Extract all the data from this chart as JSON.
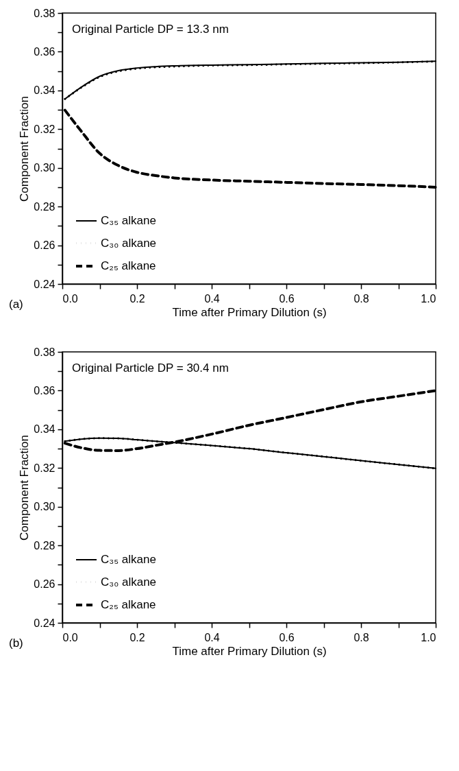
{
  "chart_data": [
    {
      "type": "line",
      "xlabel": "Time after Primary Dilution (s)",
      "ylabel": "Component Fraction",
      "annotations": [
        "Original Particle DP = 13.3 nm",
        "(a)"
      ],
      "x": [
        0.007,
        0.05,
        0.1,
        0.15,
        0.2,
        0.25,
        0.3,
        0.4,
        0.5,
        0.6,
        0.7,
        0.8,
        0.9,
        1.0
      ],
      "series": [
        {
          "name": "C₃₅ alkane",
          "color": "#000000",
          "line_style": "solid",
          "values": [
            0.3356,
            0.3416,
            0.3473,
            0.3502,
            0.3516,
            0.3523,
            0.3527,
            0.3531,
            0.3533,
            0.3537,
            0.354,
            0.3543,
            0.3546,
            0.3551
          ]
        },
        {
          "name": "C₃₀ alkane",
          "color": "#000000",
          "line_style": "dotted",
          "values": [
            0.3356,
            0.3414,
            0.347,
            0.3499,
            0.3513,
            0.352,
            0.3524,
            0.3529,
            0.3531,
            0.3535,
            0.3538,
            0.3541,
            0.3545,
            0.355
          ]
        },
        {
          "name": "C₂₅ alkane",
          "color": "#000000",
          "line_style": "dashed",
          "values": [
            0.3298,
            0.3191,
            0.3075,
            0.3012,
            0.2977,
            0.296,
            0.2948,
            0.2937,
            0.2931,
            0.2925,
            0.2919,
            0.2914,
            0.2908,
            0.29
          ]
        }
      ],
      "xlim": [
        0,
        1
      ],
      "ylim": [
        0.24,
        0.38
      ],
      "xticks": [
        {
          "value": 0,
          "label": "0.0"
        },
        {
          "value": 0.1,
          "label": null
        },
        0.2,
        {
          "value": 0.3,
          "label": null
        },
        0.4,
        {
          "value": 0.5,
          "label": null
        },
        0.6,
        {
          "value": 0.7,
          "label": null
        },
        0.8,
        {
          "value": 0.9,
          "label": null
        },
        {
          "value": 1,
          "label": "1.0"
        }
      ],
      "yticks": [
        0.24,
        {
          "value": 0.25,
          "label": null
        },
        0.26,
        {
          "value": 0.27,
          "label": null
        },
        0.28,
        {
          "value": 0.29,
          "label": null
        },
        {
          "value": 0.3,
          "label": "0.30"
        },
        {
          "value": 0.31,
          "label": null
        },
        0.32,
        {
          "value": 0.33,
          "label": null
        },
        0.34,
        {
          "value": 0.35,
          "label": null
        },
        0.36,
        {
          "value": 0.37,
          "label": null
        },
        0.38
      ],
      "grid": false,
      "legend": "bottom left",
      "marker": "none"
    },
    {
      "type": "line",
      "xlabel": "Time after Primary Dilution (s)",
      "ylabel": "Component Fraction",
      "annotations": [
        "Original Particle DP = 30.4 nm",
        "(b)"
      ],
      "x": [
        0.007,
        0.05,
        0.1,
        0.15,
        0.2,
        0.25,
        0.3,
        0.4,
        0.5,
        0.6,
        0.7,
        0.8,
        0.9,
        1.0
      ],
      "series": [
        {
          "name": "C₃₅ alkane",
          "color": "#000000",
          "line_style": "solid",
          "values": [
            0.3338,
            0.3349,
            0.3354,
            0.3353,
            0.3346,
            0.3338,
            0.3331,
            0.3316,
            0.33,
            0.3279,
            0.3259,
            0.3238,
            0.3218,
            0.3198
          ]
        },
        {
          "name": "C₃₀ alkane",
          "color": "#000000",
          "line_style": "dotted",
          "values": [
            0.3338,
            0.3349,
            0.3354,
            0.3353,
            0.3346,
            0.3338,
            0.3331,
            0.3316,
            0.33,
            0.3279,
            0.3259,
            0.3238,
            0.3218,
            0.3198
          ]
        },
        {
          "name": "C₂₅ alkane",
          "color": "#000000",
          "line_style": "dashed",
          "values": [
            0.3328,
            0.3305,
            0.3291,
            0.329,
            0.33,
            0.3317,
            0.3334,
            0.3375,
            0.3421,
            0.3461,
            0.3502,
            0.3542,
            0.3571,
            0.36
          ]
        }
      ],
      "xlim": [
        0,
        1
      ],
      "ylim": [
        0.24,
        0.38
      ],
      "xticks": [
        {
          "value": 0,
          "label": "0.0"
        },
        {
          "value": 0.1,
          "label": null
        },
        0.2,
        {
          "value": 0.3,
          "label": null
        },
        0.4,
        {
          "value": 0.5,
          "label": null
        },
        0.6,
        {
          "value": 0.7,
          "label": null
        },
        0.8,
        {
          "value": 0.9,
          "label": null
        },
        {
          "value": 1,
          "label": "1.0"
        }
      ],
      "yticks": [
        0.24,
        {
          "value": 0.25,
          "label": null
        },
        0.26,
        {
          "value": 0.27,
          "label": null
        },
        0.28,
        {
          "value": 0.29,
          "label": null
        },
        {
          "value": 0.3,
          "label": "0.30"
        },
        {
          "value": 0.31,
          "label": null
        },
        0.32,
        {
          "value": 0.33,
          "label": null
        },
        0.34,
        {
          "value": 0.35,
          "label": null
        },
        0.36,
        {
          "value": 0.37,
          "label": null
        },
        0.38
      ],
      "grid": false,
      "legend": "bottom left",
      "marker": "none"
    }
  ]
}
